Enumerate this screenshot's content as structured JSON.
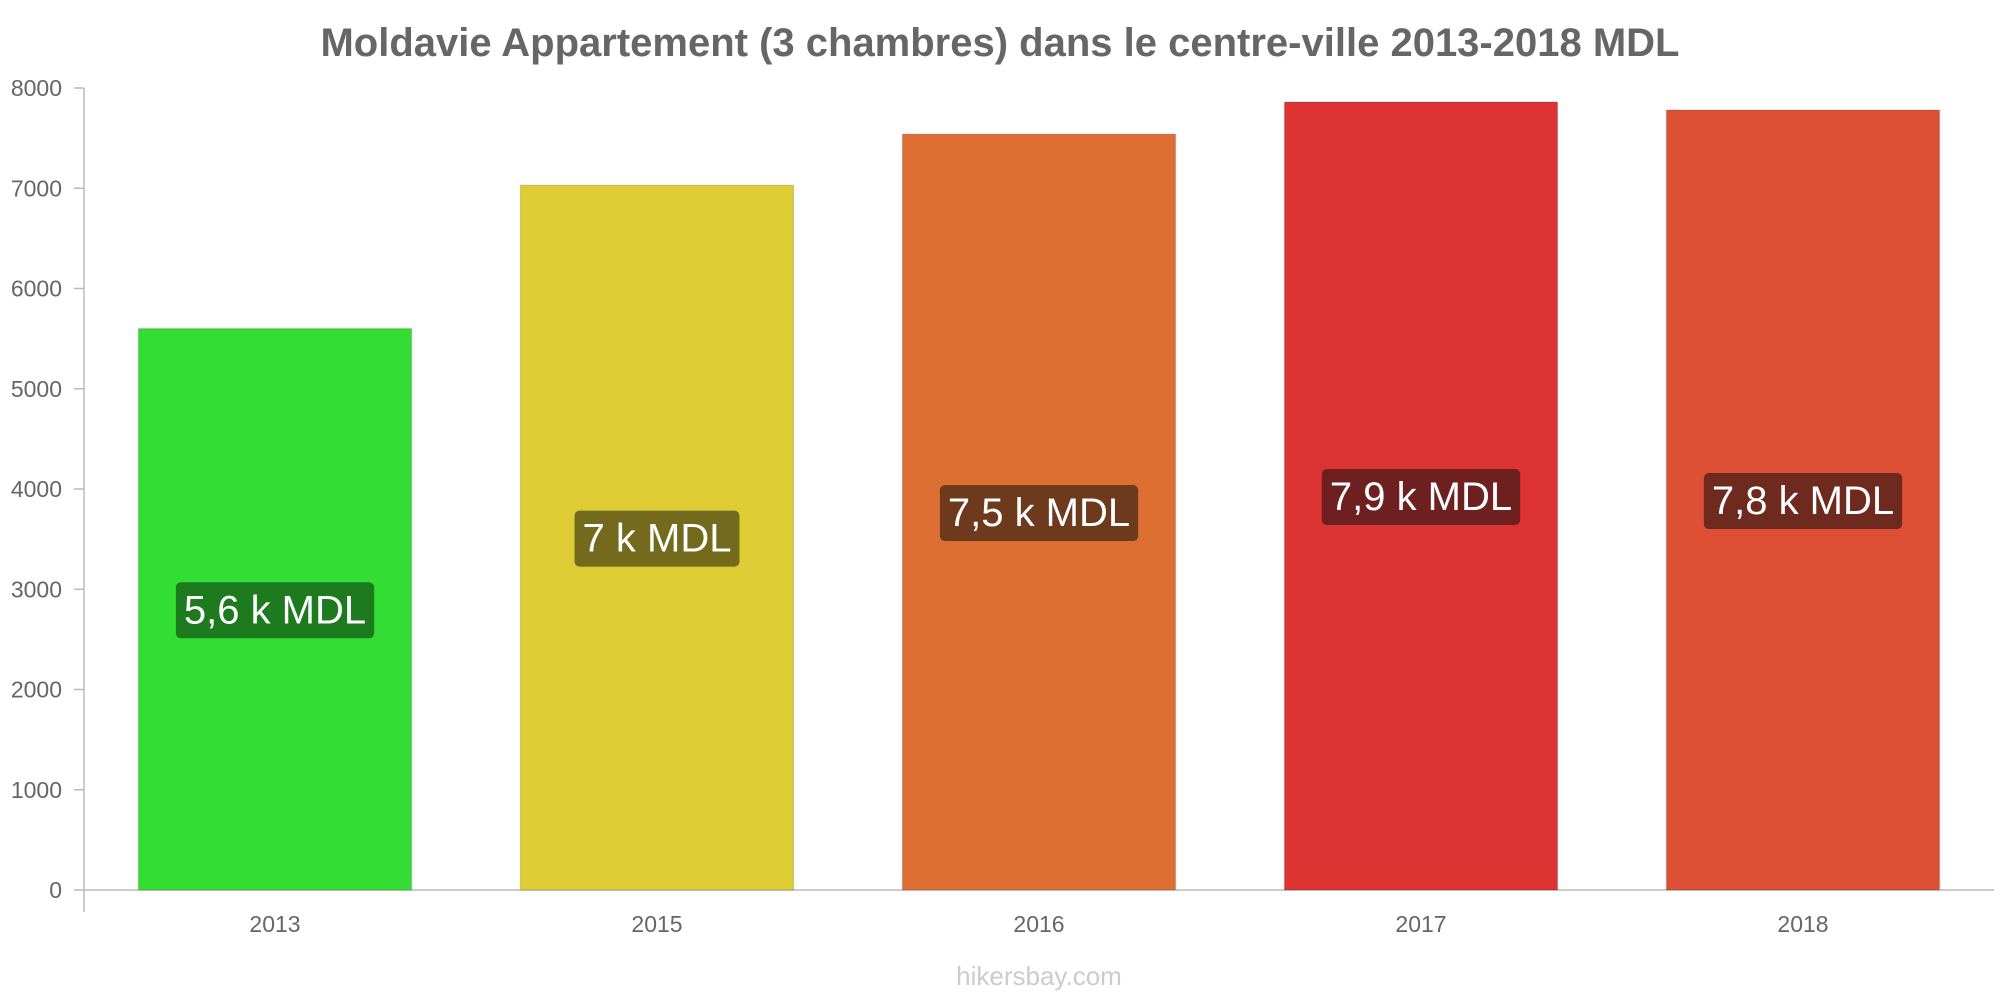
{
  "chart_data": {
    "type": "bar",
    "title": "Moldavie Appartement (3 chambres) dans le centre-ville 2013-2018 MDL",
    "categories": [
      "2013",
      "2015",
      "2016",
      "2017",
      "2018"
    ],
    "values": [
      5600,
      7030,
      7540,
      7860,
      7780
    ],
    "data_labels": [
      "5,6 k MDL",
      "7 k MDL",
      "7,5 k MDL",
      "7,9 k MDL",
      "7,8 k MDL"
    ],
    "bar_colors": [
      "#33dd33",
      "#ddcc33",
      "#dd6f33",
      "#dd3333",
      "#dd5033"
    ],
    "label_colors": [
      "#1e7a1e",
      "#736a1e",
      "#6e3a1e",
      "#6e1f1f",
      "#6e2a1e"
    ],
    "yticks": [
      "0",
      "1000",
      "2000",
      "3000",
      "4000",
      "5000",
      "6000",
      "7000",
      "8000"
    ],
    "ylim": [
      0,
      8000
    ],
    "xlabel": "",
    "ylabel": "",
    "grid": false,
    "legend": "none"
  },
  "footer": {
    "watermark": "hikersbay.com"
  }
}
